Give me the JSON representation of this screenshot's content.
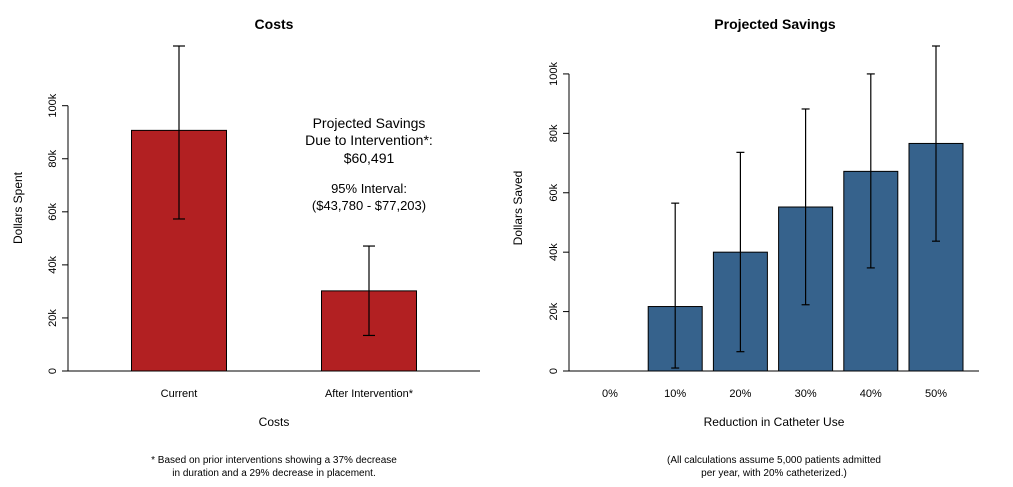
{
  "chart_data": [
    {
      "type": "bar",
      "title": "Costs",
      "xlabel": "Costs",
      "ylabel": "Dollars Spent",
      "categories": [
        "Current",
        "After Intervention*"
      ],
      "values": [
        90700,
        30200
      ],
      "error_low": [
        57300,
        13400
      ],
      "error_high": [
        122500,
        47100
      ],
      "ylim": [
        0,
        122500
      ],
      "yticks": [
        0,
        20000,
        40000,
        60000,
        80000,
        100000
      ],
      "ytick_labels": [
        "0",
        "20k",
        "40k",
        "60k",
        "80k",
        "100k"
      ],
      "bar_color": "#b22022",
      "annotation": {
        "line1": "Projected Savings",
        "line2": "Due to Intervention*:",
        "line3": "$60,491",
        "line4": "95% Interval:",
        "line5": "($43,780 - $77,203)"
      },
      "footnote": {
        "line1": "* Based on prior interventions showing a 37% decrease",
        "line2": "in duration and a 29% decrease in placement."
      }
    },
    {
      "type": "bar",
      "title": "Projected Savings",
      "xlabel": "Reduction in Catheter Use",
      "ylabel": "Dollars Saved",
      "categories": [
        "0%",
        "10%",
        "20%",
        "30%",
        "40%",
        "50%"
      ],
      "values": [
        0,
        21700,
        40000,
        55200,
        67200,
        76600
      ],
      "error_low": [
        0,
        1000,
        6500,
        22300,
        34700,
        43700
      ],
      "error_high": [
        0,
        56500,
        73600,
        88200,
        100000,
        109400
      ],
      "ylim": [
        0,
        109400
      ],
      "yticks": [
        0,
        20000,
        40000,
        60000,
        80000,
        100000
      ],
      "ytick_labels": [
        "0",
        "20k",
        "40k",
        "60k",
        "80k",
        "100k"
      ],
      "bar_color": "#36628c",
      "footnote": {
        "line1": "(All calculations assume 5,000 patients admitted",
        "line2": "per year, with 20% catheterized.)"
      }
    }
  ]
}
